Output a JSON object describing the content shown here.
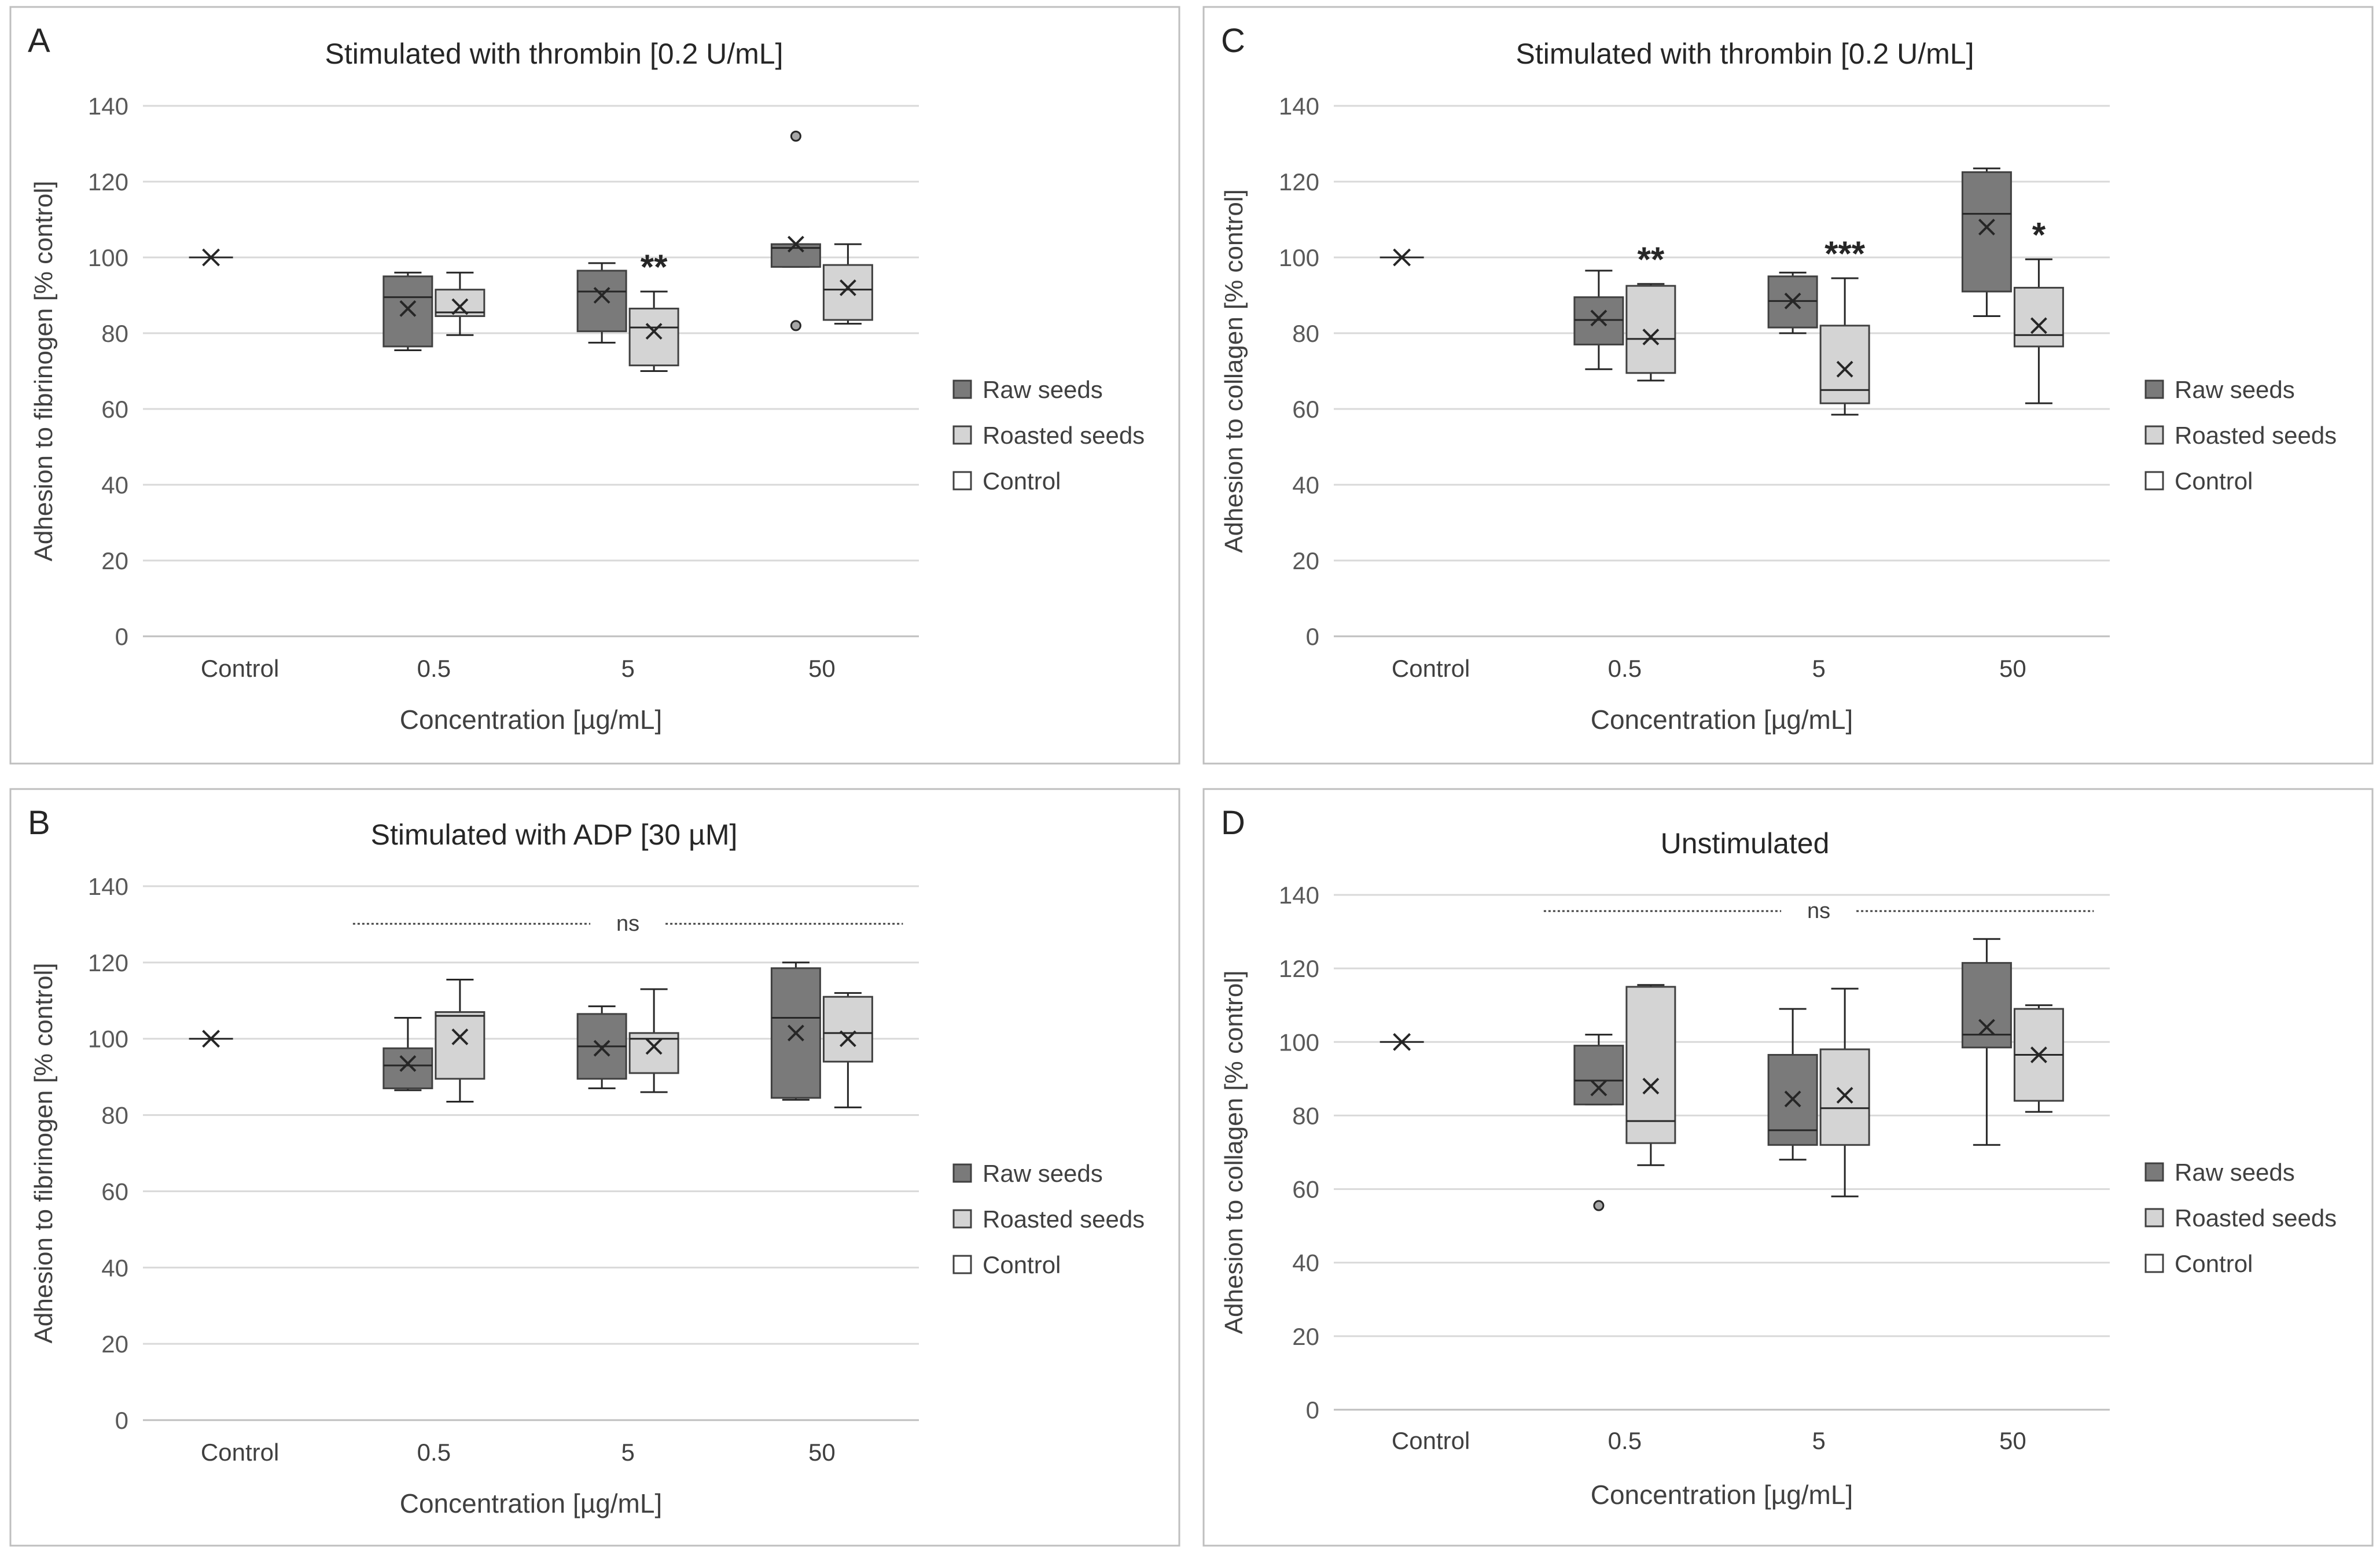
{
  "chart_data": [
    {
      "type": "box",
      "panel_label": "A",
      "title": "Stimulated with thrombin [0.2 U/mL]",
      "xlabel": "Concentration [µg/mL]",
      "ylabel": "Adhesion to fibrinogen [% control]",
      "ylim": [
        0,
        140
      ],
      "yticks": [
        "0",
        "20",
        "40",
        "60",
        "80",
        "100",
        "120",
        "140"
      ],
      "categories": [
        "Control",
        "0.5",
        "5",
        "50"
      ],
      "legend": [
        "Raw seeds",
        "Roasted seeds",
        "Control"
      ],
      "control": {
        "mean": 100
      },
      "series": [
        {
          "name": "Raw seeds",
          "color": "#7a7a7a",
          "boxes": [
            {
              "category": "0.5",
              "min": 75.5,
              "q1": 76.5,
              "median": 89.5,
              "q3": 95,
              "max": 96,
              "mean": 86.5,
              "outliers": [],
              "sig": ""
            },
            {
              "category": "5",
              "min": 77.5,
              "q1": 80.5,
              "median": 91,
              "q3": 96.5,
              "max": 98.5,
              "mean": 90,
              "outliers": [],
              "sig": ""
            },
            {
              "category": "50",
              "min": 97.5,
              "q1": 97.5,
              "median": 102.5,
              "q3": 103.5,
              "max": 103.5,
              "mean": 103.5,
              "outliers": [
                132,
                82
              ],
              "sig": ""
            }
          ]
        },
        {
          "name": "Roasted seeds",
          "color": "#d4d4d4",
          "boxes": [
            {
              "category": "0.5",
              "min": 79.5,
              "q1": 84.5,
              "median": 85.5,
              "q3": 91.5,
              "max": 96,
              "mean": 87,
              "outliers": [],
              "sig": ""
            },
            {
              "category": "5",
              "min": 70,
              "q1": 71.5,
              "median": 81.5,
              "q3": 86.5,
              "max": 91,
              "mean": 80.5,
              "outliers": [],
              "sig": "**"
            },
            {
              "category": "50",
              "min": 82.5,
              "q1": 83.5,
              "median": 91.5,
              "q3": 98,
              "max": 103.5,
              "mean": 92,
              "outliers": [],
              "sig": ""
            }
          ]
        }
      ],
      "ns": ""
    },
    {
      "type": "box",
      "panel_label": "B",
      "title": "Stimulated with ADP [30 µM]",
      "xlabel": "Concentration [µg/mL]",
      "ylabel": "Adhesion to fibrinogen [% control]",
      "ylim": [
        0,
        140
      ],
      "yticks": [
        "0",
        "20",
        "40",
        "60",
        "80",
        "100",
        "120",
        "140"
      ],
      "categories": [
        "Control",
        "0.5",
        "5",
        "50"
      ],
      "legend": [
        "Raw seeds",
        "Roasted seeds",
        "Control"
      ],
      "control": {
        "mean": 100
      },
      "series": [
        {
          "name": "Raw seeds",
          "color": "#7a7a7a",
          "boxes": [
            {
              "category": "0.5",
              "min": 86.5,
              "q1": 87,
              "median": 93,
              "q3": 97.5,
              "max": 105.5,
              "mean": 93.5,
              "outliers": [],
              "sig": ""
            },
            {
              "category": "5",
              "min": 87,
              "q1": 89.5,
              "median": 98,
              "q3": 106.5,
              "max": 108.5,
              "mean": 97.5,
              "outliers": [],
              "sig": ""
            },
            {
              "category": "50",
              "min": 84,
              "q1": 84.5,
              "median": 105.5,
              "q3": 118.5,
              "max": 120,
              "mean": 101.5,
              "outliers": [],
              "sig": ""
            }
          ]
        },
        {
          "name": "Roasted seeds",
          "color": "#d4d4d4",
          "boxes": [
            {
              "category": "0.5",
              "min": 83.5,
              "q1": 89.5,
              "median": 106,
              "q3": 107,
              "max": 115.5,
              "mean": 100.5,
              "outliers": [],
              "sig": ""
            },
            {
              "category": "5",
              "min": 86,
              "q1": 91,
              "median": 100,
              "q3": 101.5,
              "max": 113,
              "mean": 98,
              "outliers": [],
              "sig": ""
            },
            {
              "category": "50",
              "min": 82,
              "q1": 94,
              "median": 101.5,
              "q3": 111,
              "max": 112,
              "mean": 100,
              "outliers": [],
              "sig": ""
            }
          ]
        }
      ],
      "ns": "ns"
    },
    {
      "type": "box",
      "panel_label": "C",
      "title": "Stimulated with thrombin [0.2 U/mL]",
      "xlabel": "Concentration [µg/mL]",
      "ylabel": "Adhesion to collagen [% control]",
      "ylim": [
        0,
        140
      ],
      "yticks": [
        "0",
        "20",
        "40",
        "60",
        "80",
        "100",
        "120",
        "140"
      ],
      "categories": [
        "Control",
        "0.5",
        "5",
        "50"
      ],
      "legend": [
        "Raw seeds",
        "Roasted seeds",
        "Control"
      ],
      "control": {
        "mean": 100
      },
      "series": [
        {
          "name": "Raw seeds",
          "color": "#7a7a7a",
          "boxes": [
            {
              "category": "0.5",
              "min": 70.5,
              "q1": 77,
              "median": 83.5,
              "q3": 89.5,
              "max": 96.5,
              "mean": 84,
              "outliers": [],
              "sig": ""
            },
            {
              "category": "5",
              "min": 80,
              "q1": 81.5,
              "median": 88.5,
              "q3": 95,
              "max": 96,
              "mean": 88.5,
              "outliers": [],
              "sig": ""
            },
            {
              "category": "50",
              "min": 84.5,
              "q1": 91,
              "median": 111.5,
              "q3": 122.5,
              "max": 123.5,
              "mean": 108,
              "outliers": [],
              "sig": ""
            }
          ]
        },
        {
          "name": "Roasted seeds",
          "color": "#d4d4d4",
          "boxes": [
            {
              "category": "0.5",
              "min": 67.5,
              "q1": 69.5,
              "median": 78.5,
              "q3": 92.5,
              "max": 93,
              "mean": 79,
              "outliers": [],
              "sig": "**"
            },
            {
              "category": "5",
              "min": 58.5,
              "q1": 61.5,
              "median": 65,
              "q3": 82,
              "max": 94.5,
              "mean": 70.5,
              "outliers": [],
              "sig": "***"
            },
            {
              "category": "50",
              "min": 61.5,
              "q1": 76.5,
              "median": 79.5,
              "q3": 92,
              "max": 99.5,
              "mean": 82,
              "outliers": [],
              "sig": "*"
            }
          ]
        }
      ],
      "ns": ""
    },
    {
      "type": "box",
      "panel_label": "D",
      "title": "Unstimulated",
      "xlabel": "Concentration [µg/mL]",
      "ylabel": "Adhesion to collagen [% control]",
      "ylim": [
        0,
        140
      ],
      "yticks": [
        "0",
        "20",
        "40",
        "60",
        "80",
        "100",
        "120",
        "140"
      ],
      "categories": [
        "Control",
        "0.5",
        "5",
        "50"
      ],
      "legend": [
        "Raw seeds",
        "Roasted seeds",
        "Control"
      ],
      "control": {
        "mean": 100
      },
      "series": [
        {
          "name": "Raw seeds",
          "color": "#7a7a7a",
          "boxes": [
            {
              "category": "0.5",
              "min": 83,
              "q1": 83,
              "median": 89.5,
              "q3": 99,
              "max": 102,
              "mean": 87.5,
              "outliers": [
                55.5
              ],
              "sig": ""
            },
            {
              "category": "5",
              "min": 68,
              "q1": 72,
              "median": 76,
              "q3": 96.5,
              "max": 109,
              "mean": 84.5,
              "outliers": [],
              "sig": ""
            },
            {
              "category": "50",
              "min": 72,
              "q1": 98.5,
              "median": 102,
              "q3": 121.5,
              "max": 128,
              "mean": 104,
              "outliers": [],
              "sig": ""
            }
          ]
        },
        {
          "name": "Roasted seeds",
          "color": "#d4d4d4",
          "boxes": [
            {
              "category": "0.5",
              "min": 66.5,
              "q1": 72.5,
              "median": 78.5,
              "q3": 115,
              "max": 115.5,
              "mean": 88,
              "outliers": [],
              "sig": ""
            },
            {
              "category": "5",
              "min": 58,
              "q1": 72,
              "median": 82,
              "q3": 98,
              "max": 114.5,
              "mean": 85.5,
              "outliers": [],
              "sig": ""
            },
            {
              "category": "50",
              "min": 81,
              "q1": 84,
              "median": 96.5,
              "q3": 109,
              "max": 110,
              "mean": 96.5,
              "outliers": [],
              "sig": ""
            }
          ]
        }
      ],
      "ns": "ns"
    }
  ]
}
